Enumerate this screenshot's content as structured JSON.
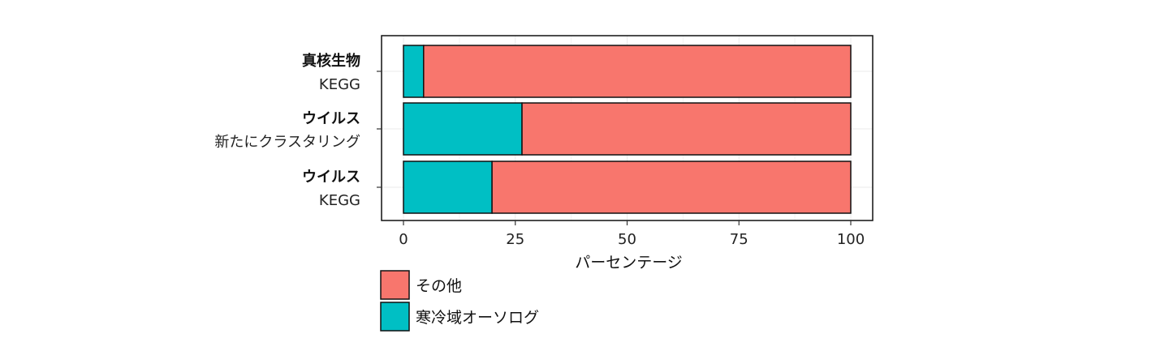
{
  "chart_data": {
    "type": "bar",
    "orientation": "horizontal",
    "stacked": true,
    "categories": [
      {
        "title": "真核生物",
        "subtitle": "KEGG"
      },
      {
        "title": "ウイルス",
        "subtitle": "新たにクラスタリング"
      },
      {
        "title": "ウイルス",
        "subtitle": "KEGG"
      }
    ],
    "series": [
      {
        "name": "寒冷域オーソログ",
        "color": "#00BFC4",
        "values": [
          4.5,
          26.5,
          19.8
        ]
      },
      {
        "name": "その他",
        "color": "#F8766D",
        "values": [
          95.5,
          73.5,
          80.2
        ]
      }
    ],
    "xlabel": "パーセンテージ",
    "xlim": [
      0,
      100
    ],
    "xticks": [
      "0",
      "25",
      "50",
      "75",
      "100"
    ],
    "xtick_values": [
      0,
      25,
      50,
      75,
      100
    ],
    "grid": true,
    "legend_position": "bottom-left",
    "legend_order": [
      "その他",
      "寒冷域オーソログ"
    ]
  }
}
